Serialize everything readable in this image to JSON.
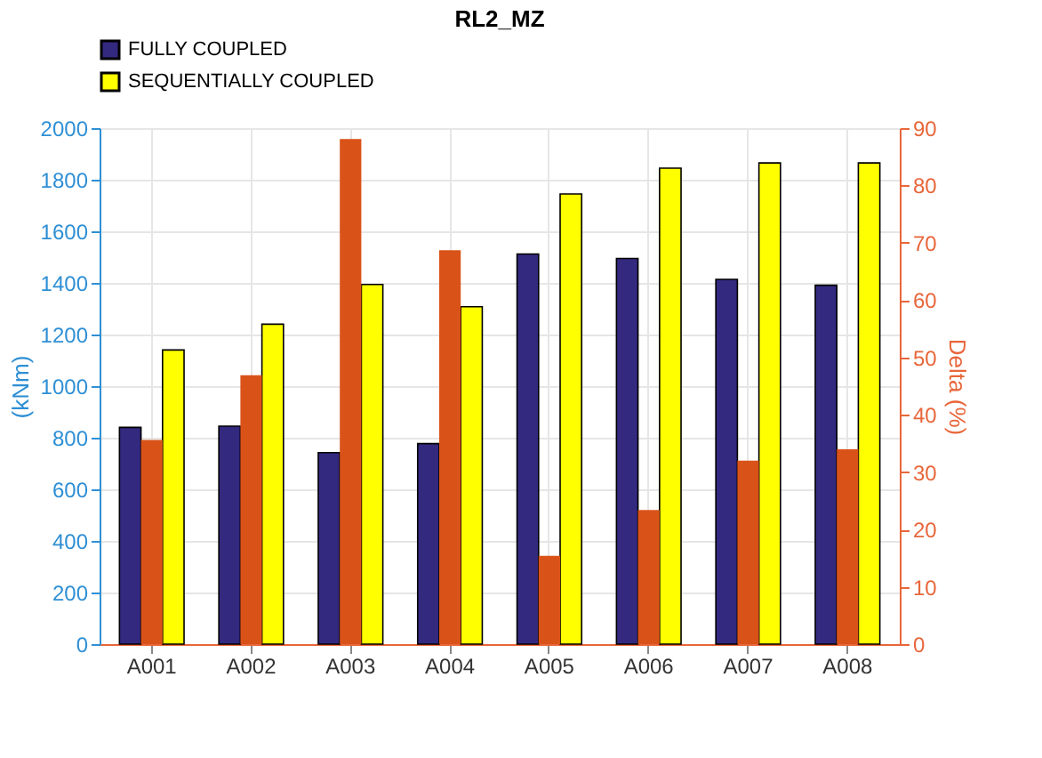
{
  "chart_data": {
    "type": "bar",
    "title": "RL2_MZ",
    "ylabel": "(kNm)",
    "y2label": "Delta (%)",
    "categories": [
      "A001",
      "A002",
      "A003",
      "A004",
      "A005",
      "A006",
      "A007",
      "A008"
    ],
    "series": [
      {
        "name": "FULLY COUPLED",
        "color": "#33297f",
        "values": [
          840,
          845,
          742,
          777,
          1512,
          1495,
          1414,
          1391
        ]
      },
      {
        "color": "#d95319",
        "axis": "y2",
        "values": [
          35.6,
          46.9,
          88.1,
          68.7,
          15.4,
          23.4,
          32.0,
          34.0
        ]
      },
      {
        "name": "SEQUENTIALLY COUPLED",
        "color": "#ffff00",
        "values": [
          1140,
          1240,
          1394,
          1308,
          1745,
          1845,
          1865,
          1865
        ]
      }
    ],
    "ylim": [
      0,
      2000
    ],
    "yticks": [
      0,
      200,
      400,
      600,
      800,
      1000,
      1200,
      1400,
      1600,
      1800,
      2000
    ],
    "y2lim": [
      0,
      90
    ],
    "y2ticks": [
      0,
      10,
      20,
      30,
      40,
      50,
      60,
      70,
      80,
      90
    ],
    "grid": true,
    "legend": "top"
  }
}
